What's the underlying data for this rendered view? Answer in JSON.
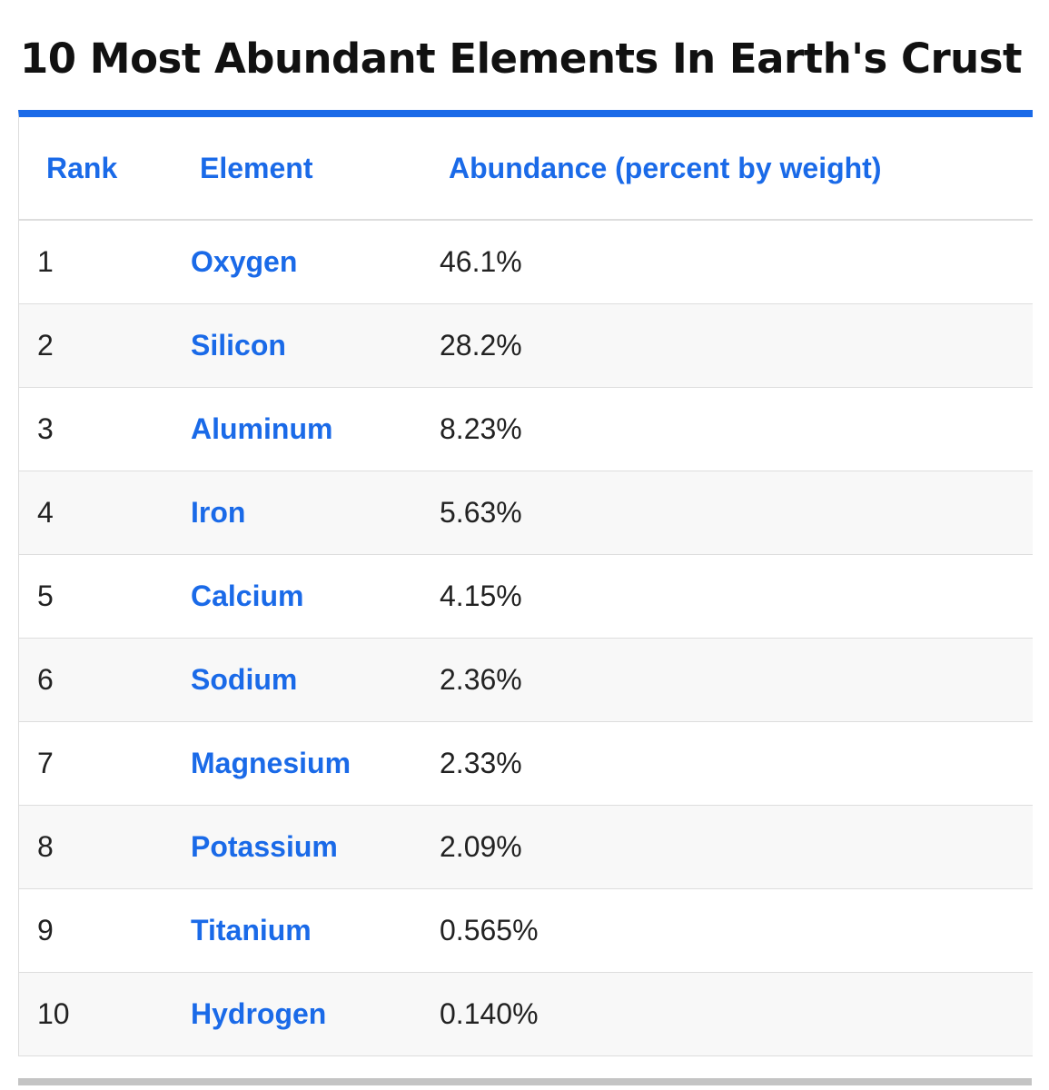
{
  "page": {
    "title": "10 Most Abundant Elements In Earth's Crust"
  },
  "table": {
    "headers": {
      "rank": "Rank",
      "element": "Element",
      "abundance": "Abundance (percent by weight)"
    },
    "rows": [
      {
        "rank": "1",
        "element": "Oxygen",
        "abundance": "46.1%"
      },
      {
        "rank": "2",
        "element": "Silicon",
        "abundance": "28.2%"
      },
      {
        "rank": "3",
        "element": "Aluminum",
        "abundance": "8.23%"
      },
      {
        "rank": "4",
        "element": "Iron",
        "abundance": "5.63%"
      },
      {
        "rank": "5",
        "element": "Calcium",
        "abundance": "4.15%"
      },
      {
        "rank": "6",
        "element": "Sodium",
        "abundance": "2.36%"
      },
      {
        "rank": "7",
        "element": "Magnesium",
        "abundance": "2.33%"
      },
      {
        "rank": "8",
        "element": "Potassium",
        "abundance": "2.09%"
      },
      {
        "rank": "9",
        "element": "Titanium",
        "abundance": "0.565%"
      },
      {
        "rank": "10",
        "element": "Hydrogen",
        "abundance": "0.140%"
      }
    ]
  },
  "colors": {
    "accent": "#1a6ae8",
    "text": "#222222",
    "title": "#111111",
    "row_alt": "#f8f8f8",
    "border": "#dddddd",
    "bottom_bar": "#c4c4c4"
  }
}
